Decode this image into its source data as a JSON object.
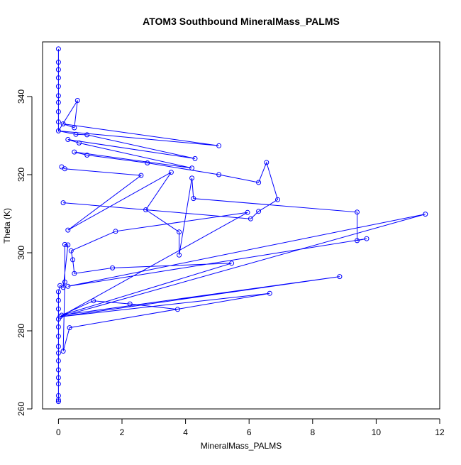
{
  "chart_data": {
    "type": "scatter",
    "title": "ATOM3 Southbound MineralMass_PALMS",
    "xlabel": "MineralMass_PALMS",
    "ylabel": "Theta (K)",
    "xlim": [
      -0.5,
      12.0
    ],
    "ylim": [
      260,
      354
    ],
    "x_ticks": [
      0,
      2,
      4,
      6,
      8,
      10,
      12
    ],
    "x_tick_labels": [
      "0",
      "2",
      "4",
      "6",
      "8",
      "10",
      "12"
    ],
    "y_ticks": [
      260,
      280,
      300,
      320,
      340
    ],
    "y_tick_labels": [
      "260",
      "280",
      "300",
      "320",
      "340"
    ],
    "series_style": "points connected by lines (type o)",
    "color": "#0000ff",
    "grid": false,
    "legend": "none",
    "points": [
      {
        "x": 0,
        "y": 352.2
      },
      {
        "x": 0,
        "y": 348.8
      },
      {
        "x": 0,
        "y": 346.9
      },
      {
        "x": 0,
        "y": 344.8
      },
      {
        "x": 0,
        "y": 342.6
      },
      {
        "x": 0,
        "y": 340.2
      },
      {
        "x": 0,
        "y": 338.5
      },
      {
        "x": 0,
        "y": 336.1
      },
      {
        "x": 0,
        "y": 333.5
      },
      {
        "x": 0,
        "y": 331.2
      },
      {
        "x": 0.6,
        "y": 339.0
      },
      {
        "x": 0.5,
        "y": 332.0
      },
      {
        "x": 0.15,
        "y": 333.0
      },
      {
        "x": 5.05,
        "y": 327.4
      },
      {
        "x": 0.55,
        "y": 330.3
      },
      {
        "x": 0.9,
        "y": 330.2
      },
      {
        "x": 4.3,
        "y": 324.1
      },
      {
        "x": 0.3,
        "y": 329.0
      },
      {
        "x": 0.65,
        "y": 328.1
      },
      {
        "x": 4.2,
        "y": 321.7
      },
      {
        "x": 0.5,
        "y": 325.8
      },
      {
        "x": 0.9,
        "y": 325.0
      },
      {
        "x": 2.8,
        "y": 323.0
      },
      {
        "x": 5.05,
        "y": 320.0
      },
      {
        "x": 6.3,
        "y": 318.0
      },
      {
        "x": 6.55,
        "y": 323.1
      },
      {
        "x": 6.9,
        "y": 313.6
      },
      {
        "x": 6.3,
        "y": 310.6
      },
      {
        "x": 6.05,
        "y": 308.7
      },
      {
        "x": 0.15,
        "y": 312.8
      },
      {
        "x": 0.1,
        "y": 322.0
      },
      {
        "x": 0.2,
        "y": 321.5
      },
      {
        "x": 2.6,
        "y": 319.8
      },
      {
        "x": 0.3,
        "y": 305.8
      },
      {
        "x": 3.55,
        "y": 320.6
      },
      {
        "x": 2.75,
        "y": 311.0
      },
      {
        "x": 3.8,
        "y": 305.3
      },
      {
        "x": 3.8,
        "y": 299.4
      },
      {
        "x": 4.2,
        "y": 319.1
      },
      {
        "x": 4.25,
        "y": 313.9
      },
      {
        "x": 9.4,
        "y": 310.4
      },
      {
        "x": 9.4,
        "y": 303.1
      },
      {
        "x": 9.7,
        "y": 303.6
      },
      {
        "x": 0.3,
        "y": 291.4
      },
      {
        "x": 11.55,
        "y": 309.9
      },
      {
        "x": 0.05,
        "y": 283.6
      },
      {
        "x": 5.95,
        "y": 310.3
      },
      {
        "x": 1.8,
        "y": 305.5
      },
      {
        "x": 0.4,
        "y": 300.5
      },
      {
        "x": 0.45,
        "y": 298.2
      },
      {
        "x": 0.5,
        "y": 294.7
      },
      {
        "x": 1.7,
        "y": 296.1
      },
      {
        "x": 5.45,
        "y": 297.3
      },
      {
        "x": 0.1,
        "y": 284.0
      },
      {
        "x": 1.1,
        "y": 287.7
      },
      {
        "x": 2.25,
        "y": 286.9
      },
      {
        "x": 3.75,
        "y": 285.5
      },
      {
        "x": 8.85,
        "y": 293.9
      },
      {
        "x": 6.65,
        "y": 289.6
      },
      {
        "x": 0.35,
        "y": 280.8
      },
      {
        "x": 0.15,
        "y": 274.8
      },
      {
        "x": 0.2,
        "y": 292.5
      },
      {
        "x": 0.2,
        "y": 302.1
      },
      {
        "x": 0.3,
        "y": 302.0
      },
      {
        "x": 0.15,
        "y": 291.1
      },
      {
        "x": 0.05,
        "y": 291.6
      },
      {
        "x": 0,
        "y": 290.0
      },
      {
        "x": 0,
        "y": 287.8
      },
      {
        "x": 0,
        "y": 285.6
      },
      {
        "x": 0,
        "y": 283.0
      },
      {
        "x": 0,
        "y": 281.0
      },
      {
        "x": 0,
        "y": 278.6
      },
      {
        "x": 0,
        "y": 276.0
      },
      {
        "x": 0,
        "y": 274.3
      },
      {
        "x": 0,
        "y": 272.3
      },
      {
        "x": 0,
        "y": 270.0
      },
      {
        "x": 0,
        "y": 268.0
      },
      {
        "x": 0,
        "y": 266.4
      },
      {
        "x": 0,
        "y": 263.4
      },
      {
        "x": 0,
        "y": 262.3
      },
      {
        "x": 0,
        "y": 261.9
      }
    ],
    "paths": [
      [
        0,
        1,
        2,
        3,
        4,
        5,
        6,
        7,
        8,
        9,
        10,
        11,
        12,
        13,
        9,
        14,
        15,
        16,
        17,
        18,
        19,
        20,
        21,
        22,
        23,
        24,
        25,
        26,
        27,
        28,
        29
      ],
      [
        30,
        31,
        32,
        33
      ],
      [
        33,
        34,
        35,
        36,
        37,
        38,
        39,
        40,
        41,
        42,
        43,
        44,
        45,
        46,
        47,
        48,
        49,
        50,
        51,
        52,
        53,
        54,
        55,
        56
      ],
      [
        53,
        57,
        45,
        58,
        59,
        60,
        61,
        62,
        63,
        64,
        65,
        66,
        67,
        68,
        69,
        70,
        71,
        72,
        73,
        74,
        75,
        76,
        77,
        78,
        79,
        80
      ]
    ]
  }
}
